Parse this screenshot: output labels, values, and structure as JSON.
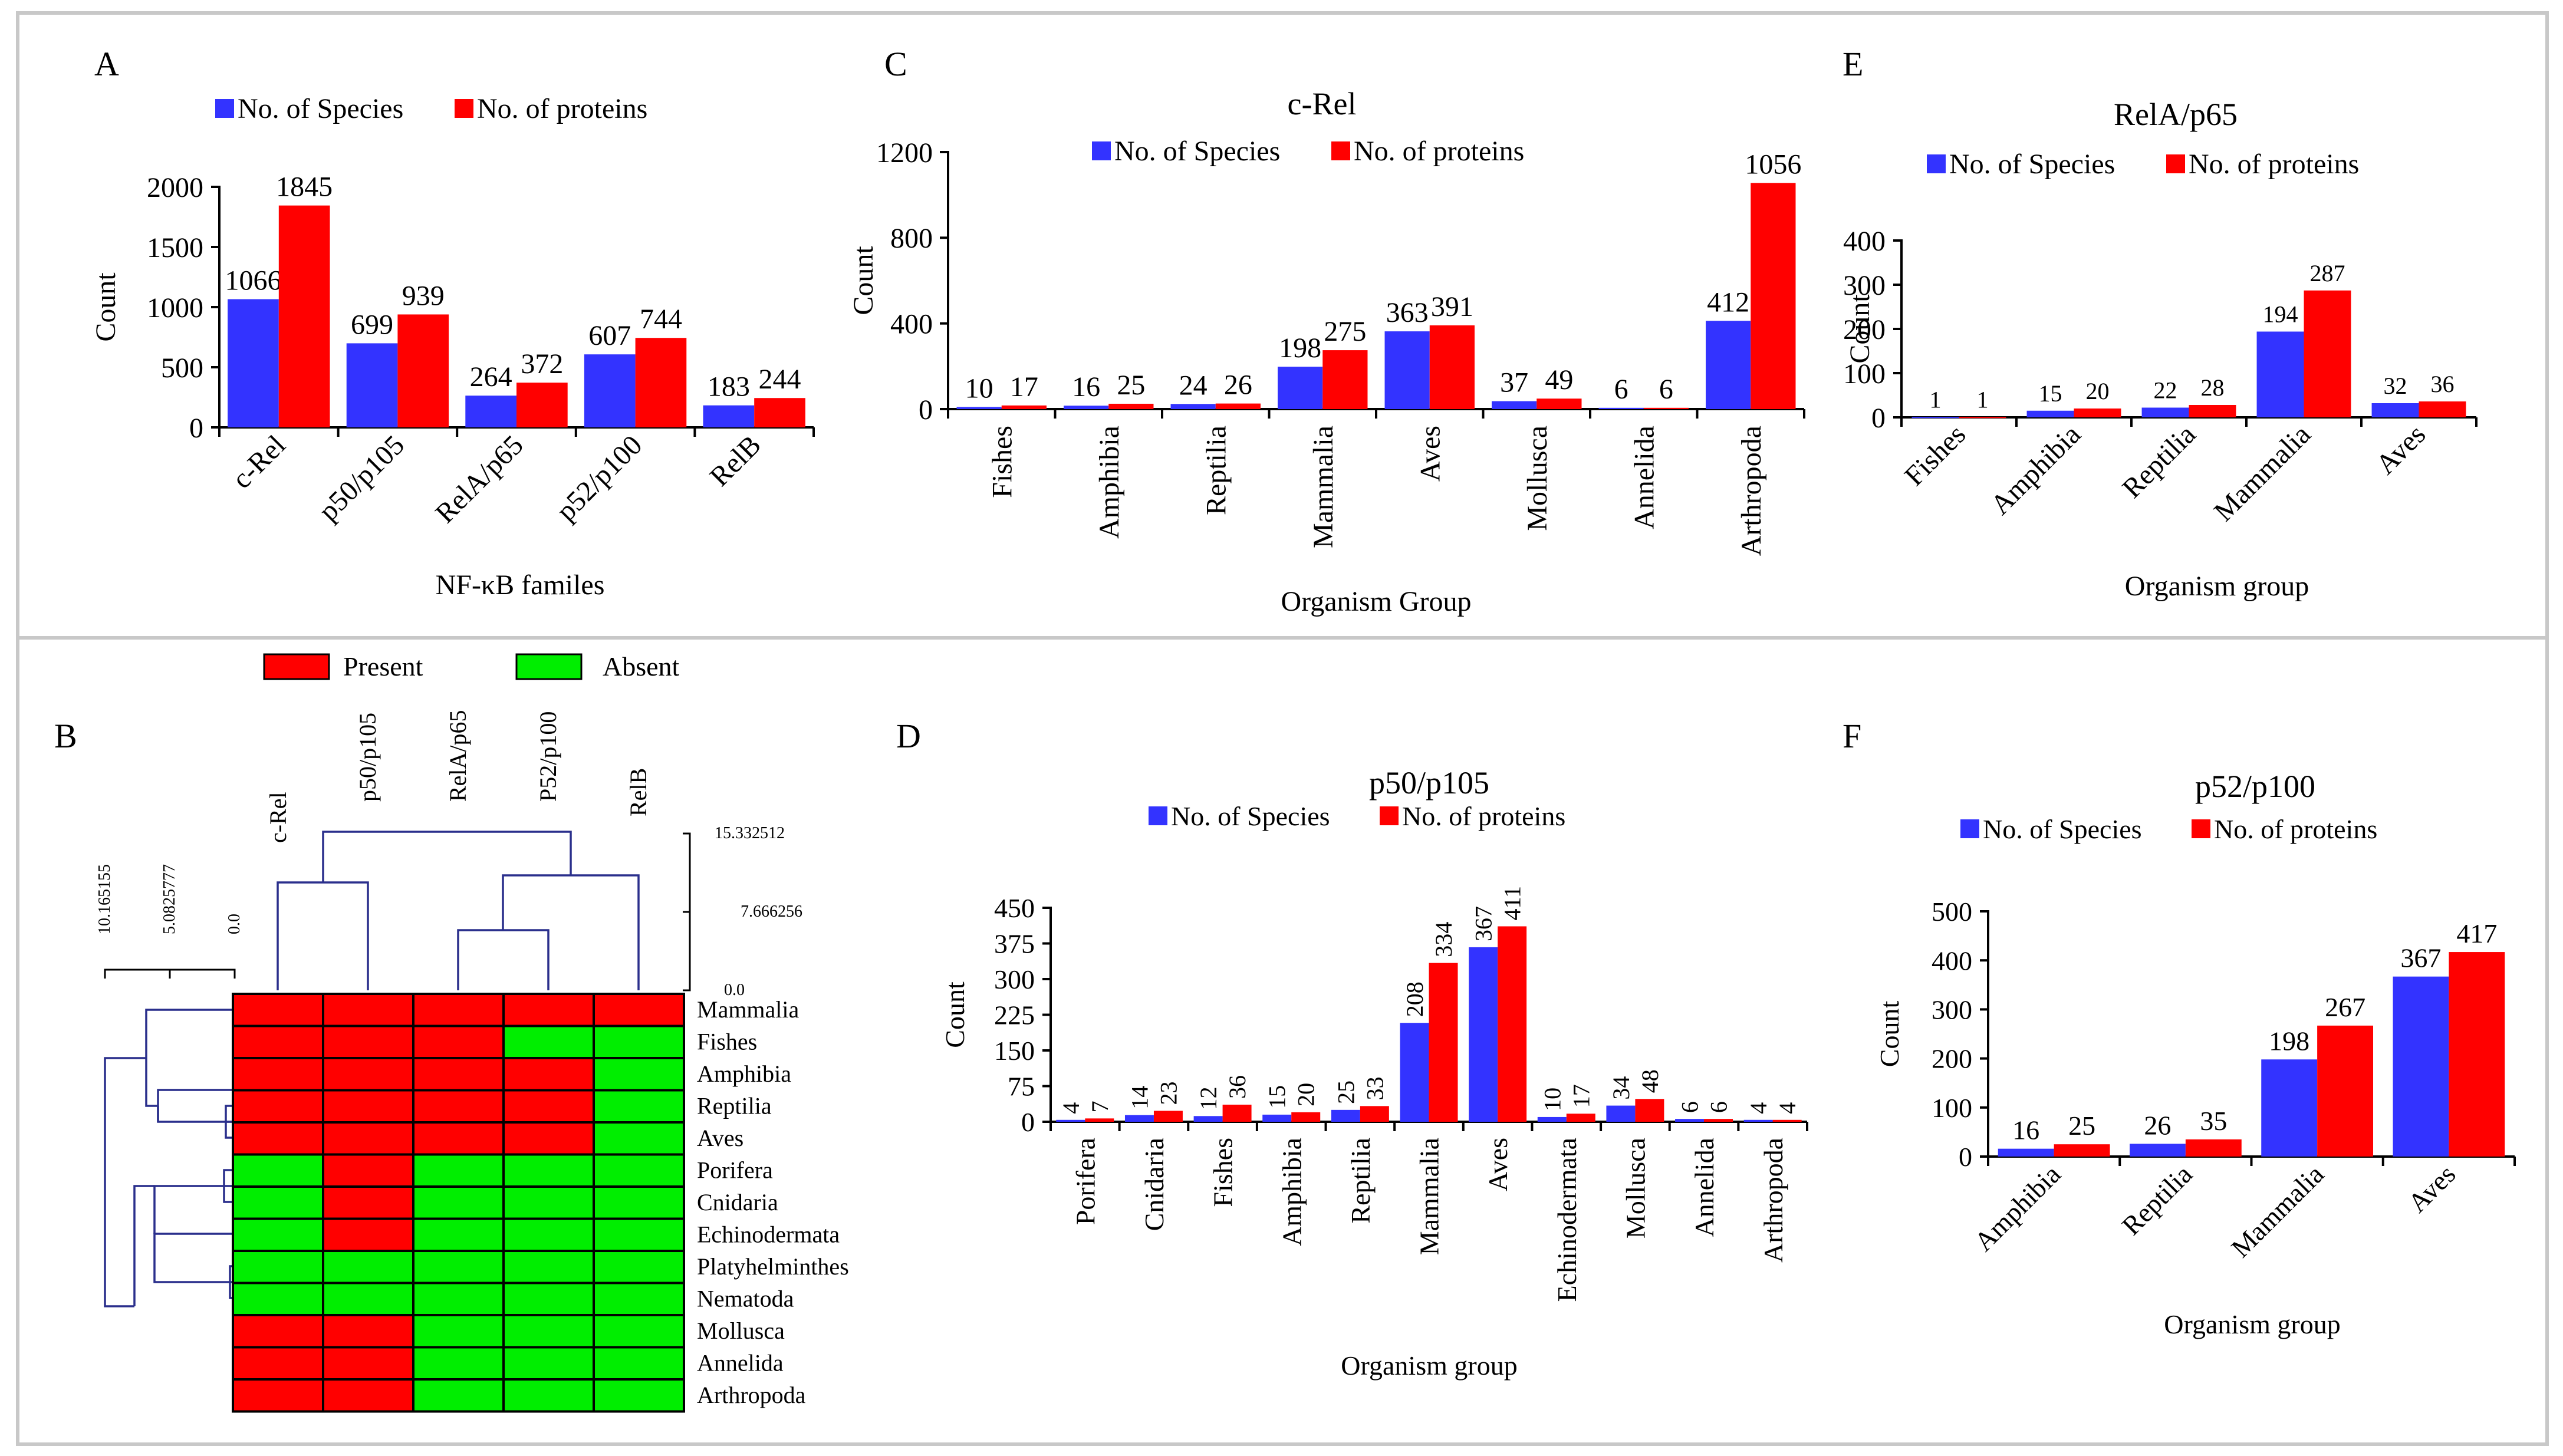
{
  "colors": {
    "species": "#3333ff",
    "proteins": "#ff0000",
    "present": "#ff0000",
    "absent": "#00ee00",
    "dendrogram": "#2a2f8c",
    "frame": "#c8c8c8"
  },
  "panel_letters": {
    "A": "A",
    "B": "B",
    "C": "C",
    "D": "D",
    "E": "E",
    "F": "F"
  },
  "heatmap": {
    "legend": {
      "present": "Present",
      "absent": "Absent"
    },
    "columns": [
      "c-Rel",
      "p50/p105",
      "RelA/p65",
      "P52/p100",
      "RelB"
    ],
    "rows": [
      "Mammalia",
      "Fishes",
      "Amphibia",
      "Reptilia",
      "Aves",
      "Porifera",
      "Cnidaria",
      "Echinodermata",
      "Platyhelminthes",
      "Nematoda",
      "Mollusca",
      "Annelida",
      "Arthropoda"
    ],
    "matrix": [
      [
        1,
        1,
        1,
        1,
        1
      ],
      [
        1,
        1,
        1,
        0,
        0
      ],
      [
        1,
        1,
        1,
        1,
        0
      ],
      [
        1,
        1,
        1,
        1,
        0
      ],
      [
        1,
        1,
        1,
        1,
        0
      ],
      [
        0,
        1,
        0,
        0,
        0
      ],
      [
        0,
        1,
        0,
        0,
        0
      ],
      [
        0,
        1,
        0,
        0,
        0
      ],
      [
        0,
        0,
        0,
        0,
        0
      ],
      [
        0,
        0,
        0,
        0,
        0
      ],
      [
        1,
        1,
        0,
        0,
        0
      ],
      [
        1,
        1,
        0,
        0,
        0
      ],
      [
        1,
        1,
        0,
        0,
        0
      ]
    ],
    "column_scale_labels": [
      "15.332512",
      "7.666256",
      "0.0"
    ],
    "row_scale_labels": [
      "10.165155",
      "5.0825777",
      "0.0"
    ]
  },
  "chart_data": [
    {
      "id": "A",
      "type": "bar",
      "title": "",
      "xlabel": "NF-κB familes",
      "ylabel": "Count",
      "categories": [
        "c-Rel",
        "p50/p105",
        "RelA/p65",
        "p52/p100",
        "RelB"
      ],
      "series": [
        {
          "name": "No. of Species",
          "values": [
            1066,
            699,
            264,
            607,
            183
          ]
        },
        {
          "name": "No. of proteins",
          "values": [
            1845,
            939,
            372,
            744,
            244
          ]
        }
      ],
      "ylim": [
        0,
        2000
      ],
      "yticks": [
        0,
        500,
        1000,
        1500,
        2000
      ]
    },
    {
      "id": "C",
      "type": "bar",
      "title": "c-Rel",
      "xlabel": "Organism Group",
      "ylabel": "Count",
      "categories": [
        "Fishes",
        "Amphibia",
        "Reptilia",
        "Mammalia",
        "Aves",
        "Mollusca",
        "Annelida",
        "Arthropoda"
      ],
      "series": [
        {
          "name": "No. of Species",
          "values": [
            10,
            16,
            24,
            198,
            363,
            37,
            6,
            412
          ]
        },
        {
          "name": "No. of proteins",
          "values": [
            17,
            25,
            26,
            275,
            391,
            49,
            6,
            1056
          ]
        }
      ],
      "ylim": [
        0,
        1200
      ],
      "yticks": [
        0,
        400,
        800,
        1200
      ]
    },
    {
      "id": "E",
      "type": "bar",
      "title": "RelA/p65",
      "xlabel": "Organism group",
      "ylabel": "Count",
      "categories": [
        "Fishes",
        "Amphibia",
        "Reptilia",
        "Mammalia",
        "Aves"
      ],
      "series": [
        {
          "name": "No. of Species",
          "values": [
            1,
            15,
            22,
            194,
            32
          ]
        },
        {
          "name": "No. of proteins",
          "values": [
            1,
            20,
            28,
            287,
            36
          ]
        }
      ],
      "ylim": [
        0,
        400
      ],
      "yticks": [
        0,
        100,
        200,
        300,
        400
      ]
    },
    {
      "id": "D",
      "type": "bar",
      "title": "p50/p105",
      "xlabel": "Organism group",
      "ylabel": "Count",
      "categories": [
        "Porifera",
        "Cnidaria",
        "Fishes",
        "Amphibia",
        "Reptilia",
        "Mammalia",
        "Aves",
        "Echinodermata",
        "Mollusca",
        "Annelida",
        "Arthropoda"
      ],
      "series": [
        {
          "name": "No. of Species",
          "values": [
            4,
            14,
            12,
            15,
            25,
            208,
            367,
            10,
            34,
            6,
            4
          ]
        },
        {
          "name": "No. of proteins",
          "values": [
            7,
            23,
            36,
            20,
            33,
            334,
            411,
            17,
            48,
            6,
            4
          ]
        }
      ],
      "ylim": [
        0,
        450
      ],
      "yticks": [
        0,
        75,
        150,
        225,
        300,
        375,
        450
      ]
    },
    {
      "id": "F",
      "type": "bar",
      "title": "p52/p100",
      "xlabel": "Organism group",
      "ylabel": "Count",
      "categories": [
        "Amphibia",
        "Reptilia",
        "Mammalia",
        "Aves"
      ],
      "series": [
        {
          "name": "No. of Species",
          "values": [
            16,
            26,
            198,
            367
          ]
        },
        {
          "name": "No. of proteins",
          "values": [
            25,
            35,
            267,
            417
          ]
        }
      ],
      "ylim": [
        0,
        500
      ],
      "yticks": [
        0,
        100,
        200,
        300,
        400,
        500
      ]
    }
  ]
}
